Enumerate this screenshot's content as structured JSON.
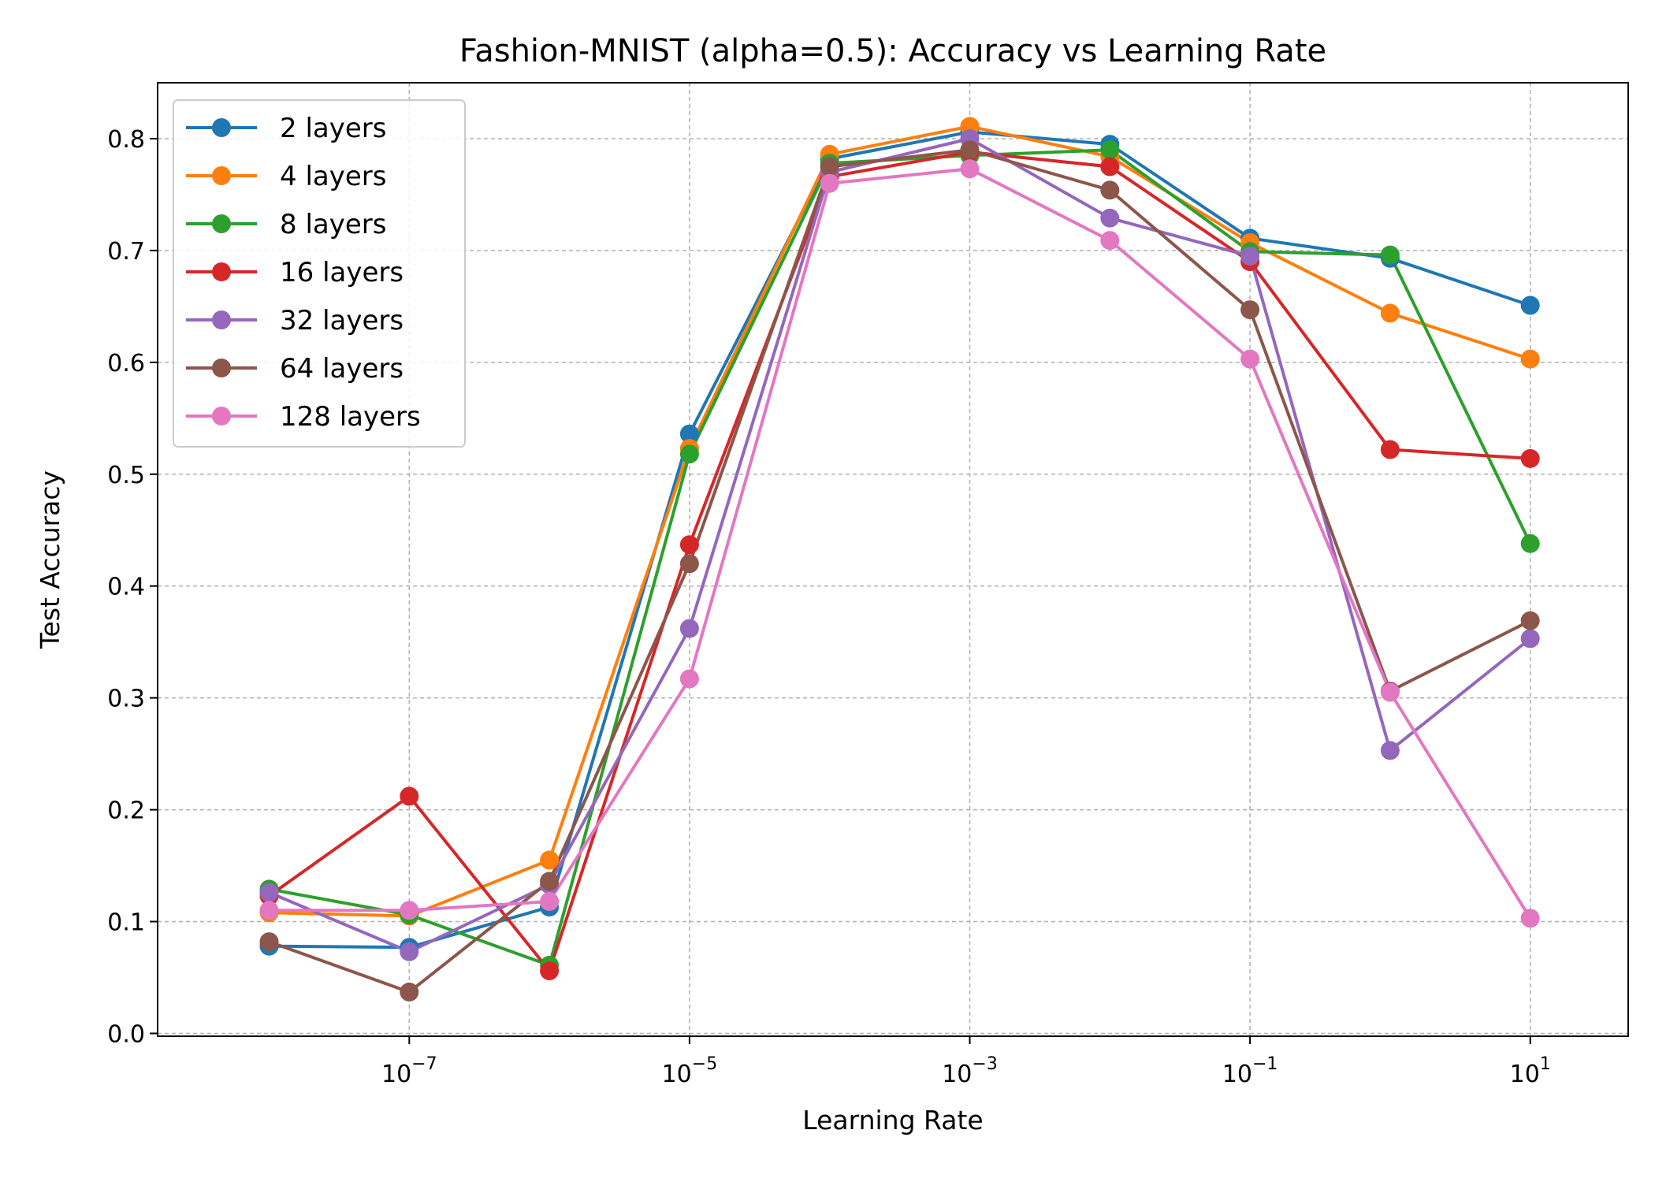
{
  "chart_data": {
    "type": "line",
    "title": "Fashion-MNIST (alpha=0.5): Accuracy vs Learning Rate",
    "xlabel": "Learning Rate",
    "ylabel": "Test Accuracy",
    "x_scale": "log",
    "x": [
      1e-08,
      1e-07,
      1e-06,
      1e-05,
      0.0001,
      0.001,
      0.01,
      0.1,
      1,
      10
    ],
    "xlim": [
      1.6e-09,
      50
    ],
    "ylim": [
      -0.0025,
      0.85
    ],
    "x_ticks": [
      {
        "exp": -7,
        "base": "10",
        "power": "−7"
      },
      {
        "exp": -5,
        "base": "10",
        "power": "−5"
      },
      {
        "exp": -3,
        "base": "10",
        "power": "−3"
      },
      {
        "exp": -1,
        "base": "10",
        "power": "−1"
      },
      {
        "exp": 1,
        "base": "10",
        "power": "1"
      }
    ],
    "y_ticks": [
      {
        "value": 0.0,
        "label": "0.0"
      },
      {
        "value": 0.1,
        "label": "0.1"
      },
      {
        "value": 0.2,
        "label": "0.2"
      },
      {
        "value": 0.3,
        "label": "0.3"
      },
      {
        "value": 0.4,
        "label": "0.4"
      },
      {
        "value": 0.5,
        "label": "0.5"
      },
      {
        "value": 0.6,
        "label": "0.6"
      },
      {
        "value": 0.7,
        "label": "0.7"
      },
      {
        "value": 0.8,
        "label": "0.8"
      }
    ],
    "grid": true,
    "legend_position": "upper-left",
    "series": [
      {
        "name": "2 layers",
        "color": "#1f77b4",
        "values": [
          0.078,
          0.077,
          0.113,
          0.536,
          0.782,
          0.806,
          0.795,
          0.711,
          0.693,
          0.651
        ]
      },
      {
        "name": "4 layers",
        "color": "#ff7f0e",
        "values": [
          0.108,
          0.105,
          0.155,
          0.523,
          0.786,
          0.811,
          0.784,
          0.707,
          0.644,
          0.603
        ]
      },
      {
        "name": "8 layers",
        "color": "#2ca02c",
        "values": [
          0.129,
          0.106,
          0.061,
          0.518,
          0.778,
          0.785,
          0.79,
          0.699,
          0.696,
          0.438
        ]
      },
      {
        "name": "16 layers",
        "color": "#d62728",
        "values": [
          0.123,
          0.212,
          0.056,
          0.437,
          0.766,
          0.788,
          0.775,
          0.69,
          0.522,
          0.514
        ]
      },
      {
        "name": "32 layers",
        "color": "#9467bd",
        "values": [
          0.126,
          0.073,
          0.133,
          0.362,
          0.77,
          0.8,
          0.729,
          0.695,
          0.253,
          0.353
        ]
      },
      {
        "name": "64 layers",
        "color": "#8c564b",
        "values": [
          0.082,
          0.037,
          0.136,
          0.42,
          0.775,
          0.79,
          0.754,
          0.647,
          0.306,
          0.369
        ]
      },
      {
        "name": "128 layers",
        "color": "#e377c2",
        "values": [
          0.11,
          0.11,
          0.118,
          0.317,
          0.76,
          0.773,
          0.709,
          0.603,
          0.305,
          0.103
        ]
      }
    ]
  }
}
